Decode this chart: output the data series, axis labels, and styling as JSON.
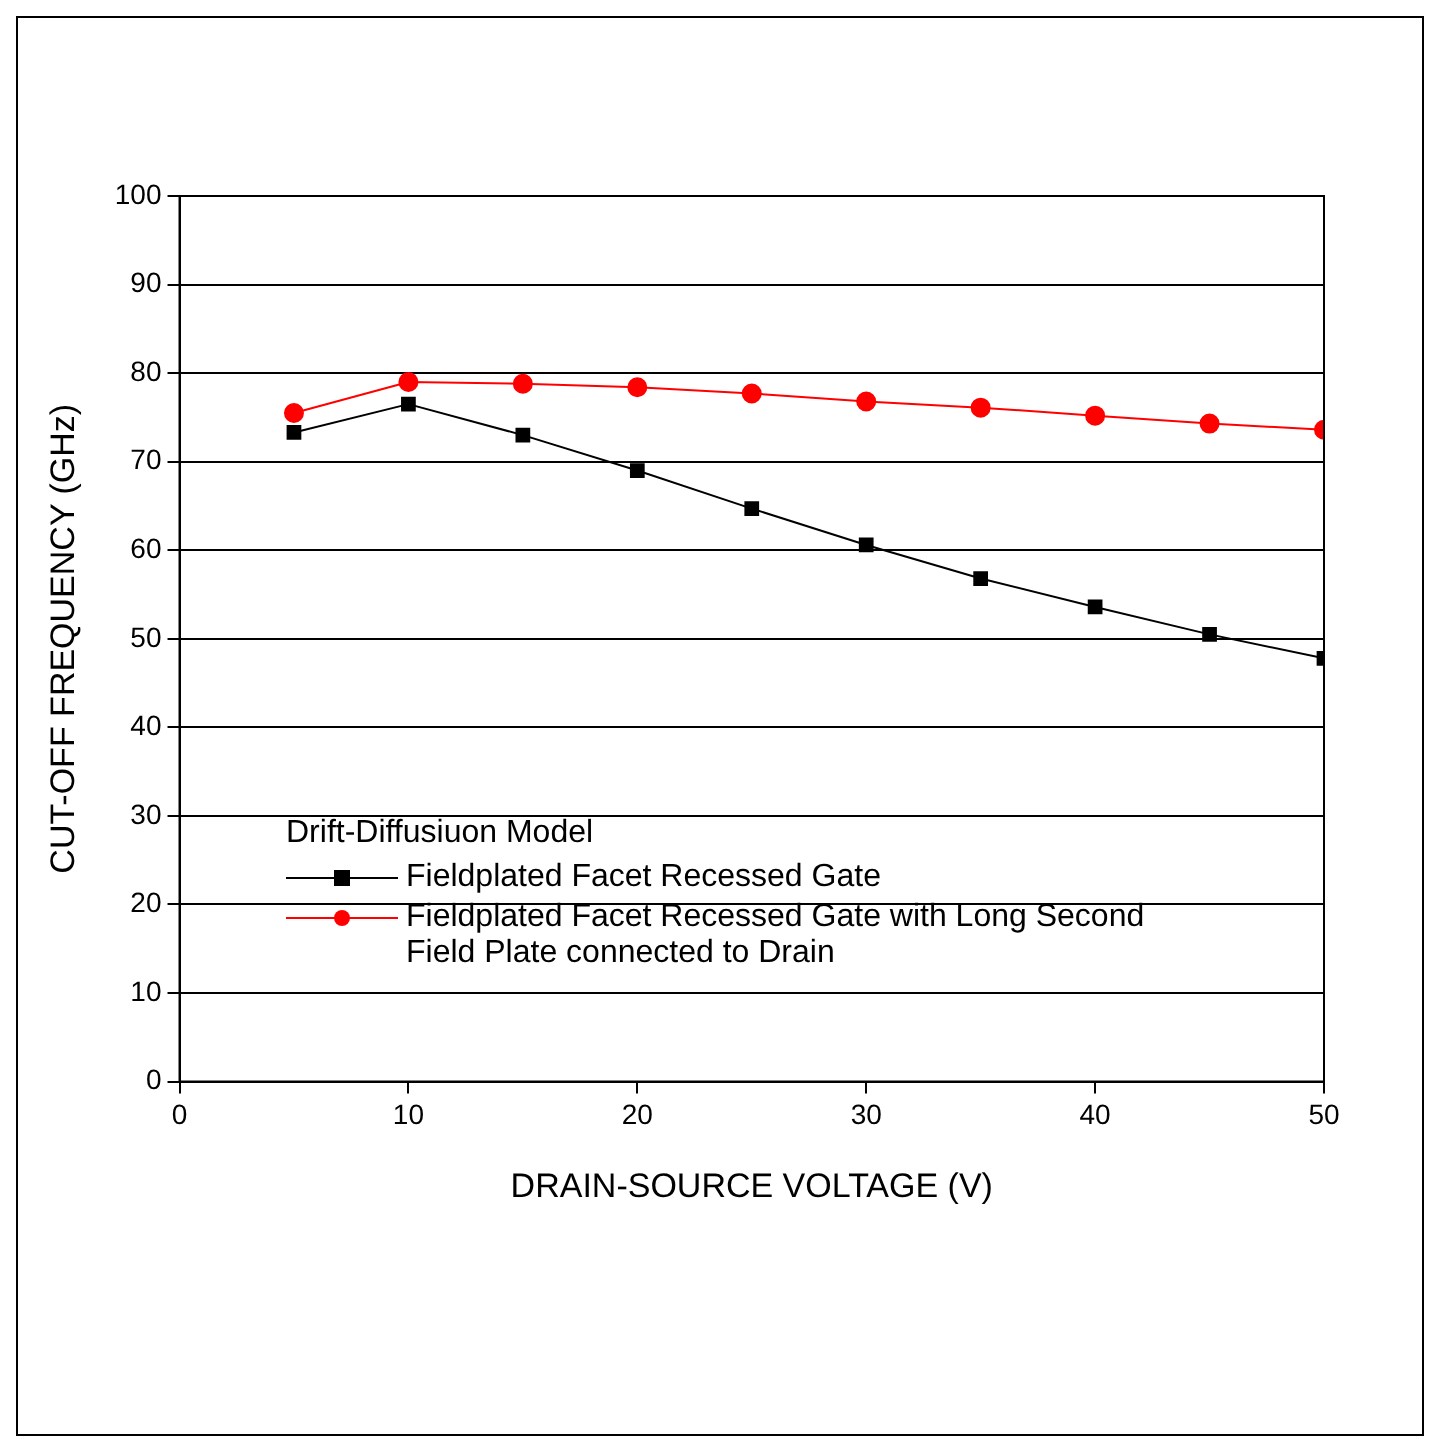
{
  "chart_data": {
    "type": "line",
    "xlabel": "DRAIN-SOURCE VOLTAGE (V)",
    "ylabel": "CUT-OFF FREQUENCY (GHz)",
    "legend_title": "Drift-Diffusiuon Model",
    "legend": "bottom left",
    "grid": "y",
    "x": [
      5,
      10,
      15,
      20,
      25,
      30,
      35,
      40,
      45,
      50
    ],
    "xlim": [
      0,
      50
    ],
    "xticks": [
      0,
      10,
      20,
      30,
      40,
      50
    ],
    "ylim": [
      0,
      100
    ],
    "yticks": [
      0,
      10,
      20,
      30,
      40,
      50,
      60,
      70,
      80,
      90,
      100
    ],
    "series": [
      {
        "name": "Fieldplated Facet Recessed Gate",
        "color": "#000000",
        "marker": "square",
        "values": [
          73.3,
          76.5,
          73,
          69,
          64.7,
          60.6,
          56.8,
          53.6,
          50.5,
          47.8
        ]
      },
      {
        "name": "Fieldplated Facet Recessed Gate with Long Second Field Plate connected to Drain",
        "color": "#ff0000",
        "marker": "circle",
        "values": [
          75.5,
          79,
          78.8,
          78.4,
          77.7,
          76.8,
          76.1,
          75.2,
          74.3,
          73.6
        ]
      }
    ]
  }
}
